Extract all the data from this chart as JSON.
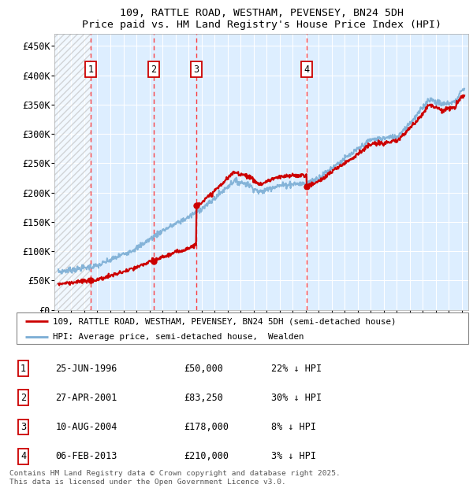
{
  "title_line1": "109, RATTLE ROAD, WESTHAM, PEVENSEY, BN24 5DH",
  "title_line2": "Price paid vs. HM Land Registry's House Price Index (HPI)",
  "ylim": [
    0,
    470000
  ],
  "yticks": [
    0,
    50000,
    100000,
    150000,
    200000,
    250000,
    300000,
    350000,
    400000,
    450000
  ],
  "ytick_labels": [
    "£0",
    "£50K",
    "£100K",
    "£150K",
    "£200K",
    "£250K",
    "£300K",
    "£350K",
    "£400K",
    "£450K"
  ],
  "xlim_start": 1993.7,
  "xlim_end": 2025.5,
  "sale_dates": [
    1996.48,
    2001.32,
    2004.61,
    2013.09
  ],
  "sale_prices": [
    50000,
    83250,
    178000,
    210000
  ],
  "sale_labels": [
    "1",
    "2",
    "3",
    "4"
  ],
  "sale_info": [
    {
      "label": "1",
      "date": "25-JUN-1996",
      "price": "£50,000",
      "hpi": "22% ↓ HPI"
    },
    {
      "label": "2",
      "date": "27-APR-2001",
      "price": "£83,250",
      "hpi": "30% ↓ HPI"
    },
    {
      "label": "3",
      "date": "10-AUG-2004",
      "price": "£178,000",
      "hpi": "8% ↓ HPI"
    },
    {
      "label": "4",
      "date": "06-FEB-2013",
      "price": "£210,000",
      "hpi": "3% ↓ HPI"
    }
  ],
  "legend_line1": "109, RATTLE ROAD, WESTHAM, PEVENSEY, BN24 5DH (semi-detached house)",
  "legend_line2": "HPI: Average price, semi-detached house,  Wealden",
  "footer": "Contains HM Land Registry data © Crown copyright and database right 2025.\nThis data is licensed under the Open Government Licence v3.0.",
  "line_color_red": "#cc0000",
  "line_color_blue": "#7aadd4",
  "bg_color": "#ddeeff",
  "sale_marker_color": "#cc0000"
}
